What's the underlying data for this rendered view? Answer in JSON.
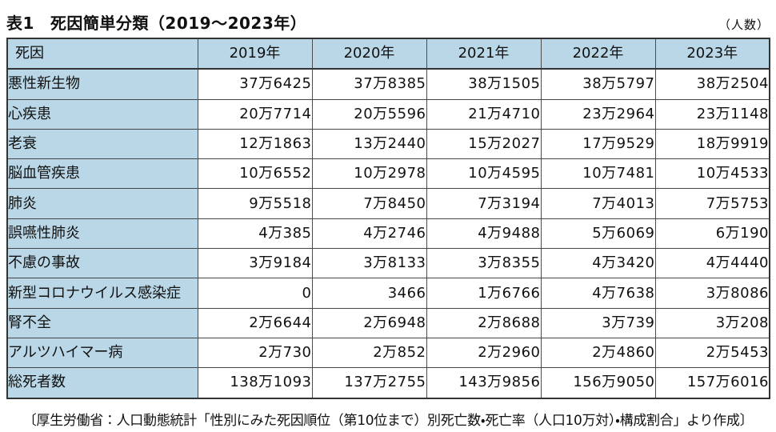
{
  "chart_data": {
    "type": "table",
    "table_label": "表1",
    "title": "死因簡単分類（2019～2023年）",
    "unit_note": "（人数）",
    "columns": [
      "死因",
      "2019年",
      "2020年",
      "2021年",
      "2022年",
      "2023年"
    ],
    "rows": [
      {
        "cause": "悪性新生物",
        "values": [
          "37万6425",
          "37万8385",
          "38万1505",
          "38万5797",
          "38万2504"
        ]
      },
      {
        "cause": "心疾患",
        "values": [
          "20万7714",
          "20万5596",
          "21万4710",
          "23万2964",
          "23万1148"
        ]
      },
      {
        "cause": "老衰",
        "values": [
          "12万1863",
          "13万2440",
          "15万2027",
          "17万9529",
          "18万9919"
        ]
      },
      {
        "cause": "脳血管疾患",
        "values": [
          "10万6552",
          "10万2978",
          "10万4595",
          "10万7481",
          "10万4533"
        ]
      },
      {
        "cause": "肺炎",
        "values": [
          "9万5518",
          "7万8450",
          "7万3194",
          "7万4013",
          "7万5753"
        ]
      },
      {
        "cause": "誤嚥性肺炎",
        "values": [
          "4万385",
          "4万2746",
          "4万9488",
          "5万6069",
          "6万190"
        ]
      },
      {
        "cause": "不慮の事故",
        "values": [
          "3万9184",
          "3万8133",
          "3万8355",
          "4万3420",
          "4万4440"
        ]
      },
      {
        "cause": "新型コロナウイルス感染症",
        "values": [
          "0",
          "3466",
          "1万6766",
          "4万7638",
          "3万8086"
        ]
      },
      {
        "cause": "腎不全",
        "values": [
          "2万6644",
          "2万6948",
          "2万8688",
          "3万739",
          "3万208"
        ]
      },
      {
        "cause": "アルツハイマー病",
        "values": [
          "2万730",
          "2万852",
          "2万2960",
          "2万4860",
          "2万5453"
        ]
      },
      {
        "cause": "総死者数",
        "values": [
          "138万1093",
          "137万2755",
          "143万9856",
          "156万9050",
          "157万6016"
        ]
      }
    ],
    "source": "〔厚生労働省：人口動態統計「性別にみた死因順位（第10位まで）別死亡数・死亡率（人口10万対）・構成割合」より作成〕"
  },
  "colors": {
    "header_bg": "#b9d7e6",
    "border": "#3a3a3a",
    "text": "#111111"
  }
}
